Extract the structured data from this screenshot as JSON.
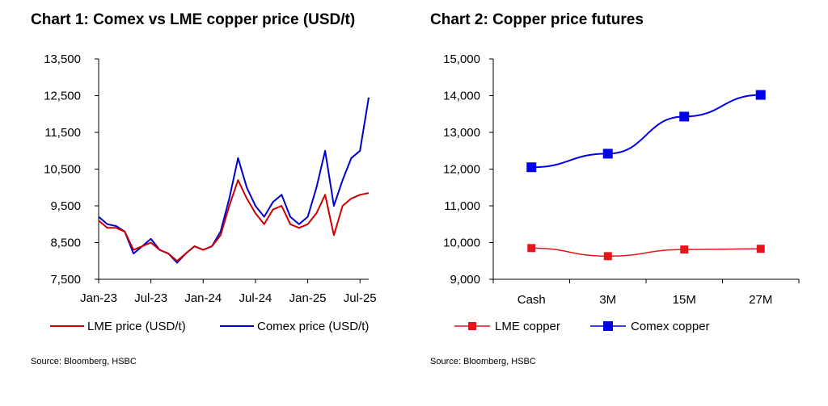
{
  "chart_data": [
    {
      "type": "line",
      "title": "Chart 1: Comex vs LME copper price (USD/t)",
      "source": "Source: Bloomberg, HSBC",
      "xlabel": "",
      "ylabel": "",
      "x_tick_labels": [
        "Jan-23",
        "Jul-23",
        "Jan-24",
        "Jul-24",
        "Jan-25",
        "Jul-25"
      ],
      "x_range": [
        "Jan-23",
        "Aug-25"
      ],
      "y_ticks": [
        "7,500",
        "8,500",
        "9,500",
        "10,500",
        "11,500",
        "12,500",
        "13,500"
      ],
      "ylim": [
        7500,
        13500
      ],
      "legend_position": "bottom",
      "grid": false,
      "x": [
        "Jan-23",
        "Feb-23",
        "Mar-23",
        "Apr-23",
        "May-23",
        "Jun-23",
        "Jul-23",
        "Aug-23",
        "Sep-23",
        "Oct-23",
        "Nov-23",
        "Dec-23",
        "Jan-24",
        "Feb-24",
        "Mar-24",
        "Apr-24",
        "May-24",
        "Jun-24",
        "Jul-24",
        "Aug-24",
        "Sep-24",
        "Oct-24",
        "Nov-24",
        "Dec-24",
        "Jan-25",
        "Feb-25",
        "Mar-25",
        "Apr-25",
        "May-25",
        "Jun-25",
        "Jul-25",
        "Aug-25"
      ],
      "series": [
        {
          "name": "LME price (USD/t)",
          "color": "#cc0000",
          "values": [
            9100,
            8900,
            8900,
            8800,
            8300,
            8400,
            8500,
            8300,
            8200,
            8000,
            8200,
            8400,
            8300,
            8400,
            8700,
            9500,
            10200,
            9700,
            9300,
            9000,
            9400,
            9500,
            9000,
            8900,
            9000,
            9300,
            9800,
            8700,
            9500,
            9700,
            9800,
            9850
          ]
        },
        {
          "name": "Comex price (USD/t)",
          "color": "#0000cc",
          "values": [
            9200,
            9000,
            8950,
            8800,
            8200,
            8400,
            8600,
            8300,
            8200,
            7950,
            8200,
            8400,
            8300,
            8400,
            8800,
            9700,
            10800,
            10000,
            9500,
            9200,
            9600,
            9800,
            9200,
            9000,
            9200,
            10000,
            11000,
            9500,
            10200,
            10800,
            11000,
            12450
          ]
        }
      ]
    },
    {
      "type": "line",
      "title": "Chart 2: Copper price futures",
      "source": "Source: Bloomberg, HSBC",
      "xlabel": "",
      "ylabel": "",
      "categories": [
        "Cash",
        "3M",
        "15M",
        "27M"
      ],
      "y_ticks": [
        "9,000",
        "10,000",
        "11,000",
        "12,000",
        "13,000",
        "14,000",
        "15,000"
      ],
      "ylim": [
        9000,
        15000
      ],
      "legend_position": "bottom",
      "grid": false,
      "series": [
        {
          "name": "LME copper",
          "color": "#e8141c",
          "values": [
            9850,
            9630,
            9810,
            9830
          ]
        },
        {
          "name": "Comex copper",
          "color": "#0000ee",
          "values": [
            12050,
            12420,
            13430,
            14020
          ]
        }
      ]
    }
  ]
}
